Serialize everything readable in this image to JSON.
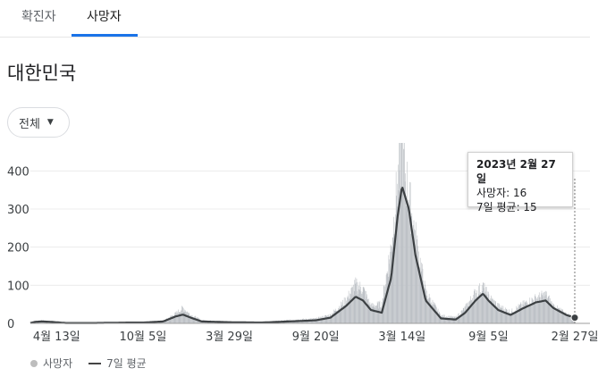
{
  "tabs": [
    {
      "label": "확진자"
    },
    {
      "label": "사망자"
    }
  ],
  "region": "대한민국",
  "filter": {
    "label": "전체"
  },
  "colors": {
    "bars": "#bdc1c6",
    "avg_line": "#3c4043",
    "accent": "#1a73e8"
  },
  "tooltip": {
    "date": "2023년 2월 27일",
    "deaths_label": "사망자: 16",
    "avg_label": "7일 평균: 15"
  },
  "legend": {
    "bars": "사망자",
    "line": "7일 평균"
  },
  "chart_data": {
    "type": "bar",
    "ylim": [
      0,
      450
    ],
    "ytick_labels": [
      "0",
      "100",
      "200",
      "300",
      "400"
    ],
    "yticks": [
      0,
      100,
      200,
      300,
      400
    ],
    "xtick_labels": [
      "4월 13일",
      "10월 5일",
      "3월 29일",
      "9월 20일",
      "3월 14일",
      "9월 5일",
      "2월 27일"
    ],
    "x_start": "2020-02-20",
    "x_end": "2023-02-27",
    "xticks": [
      "2020-04-13",
      "2020-10-05",
      "2021-03-29",
      "2021-09-20",
      "2022-03-14",
      "2022-09-05",
      "2023-02-27"
    ],
    "series": [
      {
        "name": "사망자",
        "kind": "bar",
        "values_by_week": [
          [
            "2020-02-20",
            2
          ],
          [
            "2020-03-01",
            6
          ],
          [
            "2020-03-15",
            7
          ],
          [
            "2020-04-01",
            5
          ],
          [
            "2020-05-01",
            2
          ],
          [
            "2020-07-01",
            1
          ],
          [
            "2020-09-01",
            3
          ],
          [
            "2020-10-05",
            3
          ],
          [
            "2020-11-15",
            6
          ],
          [
            "2020-12-10",
            25
          ],
          [
            "2020-12-25",
            40
          ],
          [
            "2021-01-10",
            22
          ],
          [
            "2021-02-01",
            8
          ],
          [
            "2021-03-29",
            4
          ],
          [
            "2021-06-01",
            3
          ],
          [
            "2021-08-15",
            10
          ],
          [
            "2021-09-20",
            12
          ],
          [
            "2021-10-20",
            22
          ],
          [
            "2021-11-20",
            60
          ],
          [
            "2021-12-10",
            100
          ],
          [
            "2021-12-25",
            90
          ],
          [
            "2022-01-10",
            45
          ],
          [
            "2022-02-01",
            50
          ],
          [
            "2022-02-20",
            200
          ],
          [
            "2022-03-05",
            370
          ],
          [
            "2022-03-14",
            450
          ],
          [
            "2022-03-28",
            330
          ],
          [
            "2022-04-10",
            230
          ],
          [
            "2022-05-01",
            80
          ],
          [
            "2022-06-01",
            20
          ],
          [
            "2022-07-01",
            15
          ],
          [
            "2022-07-20",
            40
          ],
          [
            "2022-08-10",
            80
          ],
          [
            "2022-08-25",
            95
          ],
          [
            "2022-09-05",
            70
          ],
          [
            "2022-09-25",
            45
          ],
          [
            "2022-10-20",
            30
          ],
          [
            "2022-11-15",
            50
          ],
          [
            "2022-12-10",
            65
          ],
          [
            "2022-12-30",
            75
          ],
          [
            "2023-01-15",
            45
          ],
          [
            "2023-02-10",
            25
          ],
          [
            "2023-02-27",
            16
          ]
        ]
      },
      {
        "name": "7일 평균",
        "kind": "line",
        "values_by_week": [
          [
            "2020-02-20",
            1
          ],
          [
            "2020-03-01",
            4
          ],
          [
            "2020-03-15",
            5
          ],
          [
            "2020-04-01",
            4
          ],
          [
            "2020-05-01",
            1
          ],
          [
            "2020-07-01",
            1
          ],
          [
            "2020-09-01",
            2
          ],
          [
            "2020-10-05",
            2
          ],
          [
            "2020-11-15",
            5
          ],
          [
            "2020-12-10",
            18
          ],
          [
            "2020-12-25",
            23
          ],
          [
            "2021-01-10",
            15
          ],
          [
            "2021-02-01",
            5
          ],
          [
            "2021-03-29",
            3
          ],
          [
            "2021-06-01",
            2
          ],
          [
            "2021-08-15",
            6
          ],
          [
            "2021-09-20",
            8
          ],
          [
            "2021-10-20",
            15
          ],
          [
            "2021-11-20",
            45
          ],
          [
            "2021-12-10",
            70
          ],
          [
            "2021-12-25",
            60
          ],
          [
            "2022-01-10",
            35
          ],
          [
            "2022-02-01",
            28
          ],
          [
            "2022-02-20",
            120
          ],
          [
            "2022-03-05",
            280
          ],
          [
            "2022-03-14",
            360
          ],
          [
            "2022-03-28",
            300
          ],
          [
            "2022-04-10",
            180
          ],
          [
            "2022-05-01",
            60
          ],
          [
            "2022-06-01",
            13
          ],
          [
            "2022-07-01",
            10
          ],
          [
            "2022-07-20",
            28
          ],
          [
            "2022-08-10",
            60
          ],
          [
            "2022-08-25",
            78
          ],
          [
            "2022-09-05",
            60
          ],
          [
            "2022-09-25",
            35
          ],
          [
            "2022-10-20",
            22
          ],
          [
            "2022-11-15",
            40
          ],
          [
            "2022-12-10",
            55
          ],
          [
            "2022-12-30",
            60
          ],
          [
            "2023-01-15",
            40
          ],
          [
            "2023-02-10",
            22
          ],
          [
            "2023-02-27",
            15
          ]
        ]
      }
    ],
    "grid": true,
    "legend_position": "bottom-left"
  }
}
